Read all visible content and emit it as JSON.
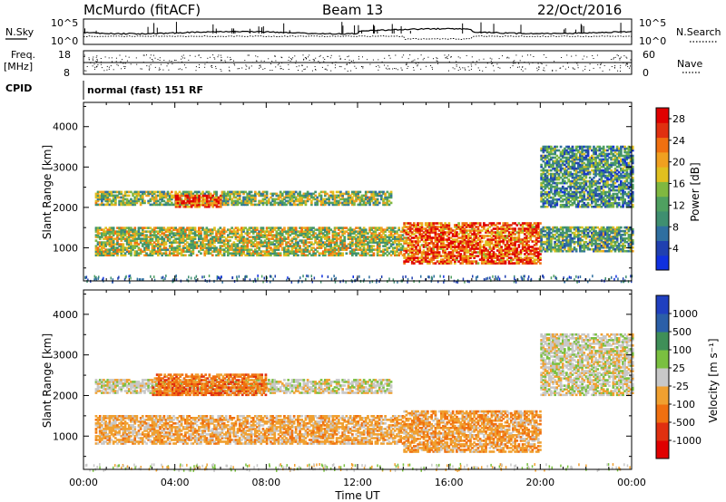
{
  "header": {
    "station": "McMurdo (fitACF)",
    "beam": "Beam 13",
    "date": "22/Oct/2016"
  },
  "noise_panel": {
    "left_label": "N.Sky",
    "right_label": "N.Search",
    "left_ticks": [
      "10^5",
      "10^0"
    ],
    "right_ticks": [
      "10^5",
      "10^0"
    ]
  },
  "freq_panel": {
    "left_label": "Freq.",
    "left_unit": "[MHz]",
    "right_label": "Nave",
    "left_ticks": [
      "18",
      "8"
    ],
    "right_ticks": [
      "60",
      "0"
    ]
  },
  "cpid_panel": {
    "label": "CPID",
    "text": "normal (fast) 151 RF"
  },
  "colors": {
    "power_scale": [
      "#1030e0",
      "#2040b0",
      "#2f6fa0",
      "#3f8f70",
      "#4fa060",
      "#80b840",
      "#e0c020",
      "#f0a020",
      "#f07010",
      "#e03010",
      "#e00000"
    ],
    "velocity_scale": [
      "#2040c0",
      "#2b5fa8",
      "#3f8f58",
      "#7ac040",
      "#c8c8c8",
      "#f0a030",
      "#f07010",
      "#e03010",
      "#e00000"
    ]
  },
  "chart_data": [
    {
      "type": "heatmap",
      "xlabel": "",
      "ylabel": "Slant Range [km]",
      "x_ticks": [
        "00:00",
        "04:00",
        "08:00",
        "12:00",
        "16:00",
        "20:00",
        "00:00"
      ],
      "x_range_hours": [
        0,
        24
      ],
      "ylim": [
        180,
        4600
      ],
      "y_ticks": [
        1000,
        2000,
        3000,
        4000
      ],
      "colorbar": {
        "label": "Power [dB]",
        "ticks": [
          4,
          8,
          12,
          16,
          20,
          24,
          28
        ],
        "range": [
          0,
          30
        ]
      },
      "echo_bands": [
        {
          "t_start": 0.5,
          "t_end": 13.5,
          "range_low": 2050,
          "range_high": 2400,
          "typical_power_db": 14
        },
        {
          "t_start": 4.0,
          "t_end": 6.0,
          "range_low": 2000,
          "range_high": 2300,
          "typical_power_db": 25
        },
        {
          "t_start": 0.5,
          "t_end": 14.0,
          "range_low": 800,
          "range_high": 1500,
          "typical_power_db": 16
        },
        {
          "t_start": 14.0,
          "t_end": 20.0,
          "range_low": 600,
          "range_high": 1600,
          "typical_power_db": 24
        },
        {
          "t_start": 20.0,
          "t_end": 24.0,
          "range_low": 900,
          "range_high": 1500,
          "typical_power_db": 12
        },
        {
          "t_start": 20.0,
          "t_end": 24.0,
          "range_low": 2000,
          "range_high": 3500,
          "typical_power_db": 10
        }
      ]
    },
    {
      "type": "heatmap",
      "xlabel": "Time UT",
      "ylabel": "Slant Range [km]",
      "x_ticks": [
        "00:00",
        "04:00",
        "08:00",
        "12:00",
        "16:00",
        "20:00",
        "00:00"
      ],
      "x_range_hours": [
        0,
        24
      ],
      "ylim": [
        180,
        4600
      ],
      "y_ticks": [
        1000,
        2000,
        3000,
        4000
      ],
      "colorbar": {
        "label": "Velocity [m s⁻¹]",
        "ticks": [
          1000,
          500,
          100,
          25,
          -25,
          -100,
          -500,
          -1000
        ],
        "range": [
          -1200,
          1200
        ]
      },
      "echo_bands": [
        {
          "t_start": 0.5,
          "t_end": 13.5,
          "range_low": 2050,
          "range_high": 2400,
          "typical_velocity_ms": 0
        },
        {
          "t_start": 3.0,
          "t_end": 8.0,
          "range_low": 2000,
          "range_high": 2500,
          "typical_velocity_ms": -500
        },
        {
          "t_start": 0.5,
          "t_end": 14.0,
          "range_low": 800,
          "range_high": 1500,
          "typical_velocity_ms": -250
        },
        {
          "t_start": 14.0,
          "t_end": 20.0,
          "range_low": 600,
          "range_high": 1600,
          "typical_velocity_ms": -300
        },
        {
          "t_start": 20.0,
          "t_end": 24.0,
          "range_low": 2000,
          "range_high": 3500,
          "typical_velocity_ms": 0
        }
      ]
    }
  ]
}
